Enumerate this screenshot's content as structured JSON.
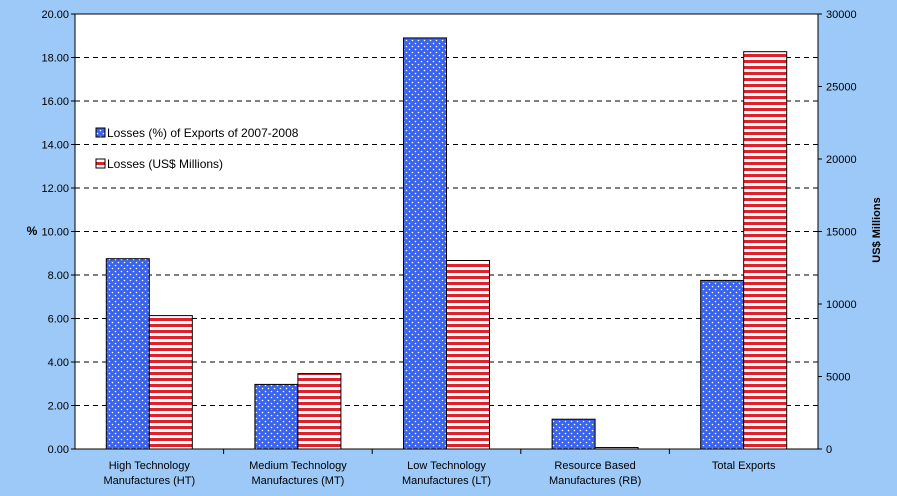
{
  "chart_data": {
    "type": "bar",
    "title": "",
    "categories": [
      [
        "High Technology",
        "Manufactures (HT)"
      ],
      [
        "Medium Technology",
        "Manufactures (MT)"
      ],
      [
        "Low Technology",
        "Manufactures (LT)"
      ],
      [
        "Resource Based",
        "Manufactures (RB)"
      ],
      [
        "Total Exports"
      ]
    ],
    "series": [
      {
        "name": "Losses (%) of Exports of 2007-2008",
        "axis": "left",
        "pattern": "dots",
        "color": "#3a63ee",
        "values": [
          8.75,
          2.97,
          18.9,
          1.37,
          7.75
        ]
      },
      {
        "name": "Losses (US$ Millions)",
        "axis": "right",
        "pattern": "stripes",
        "color": "#e0202a",
        "values": [
          9200,
          5200,
          13000,
          100,
          27400
        ]
      }
    ],
    "y_left": {
      "label": "%",
      "ylim": [
        0,
        20
      ],
      "ticks": [
        "0.00",
        "2.00",
        "4.00",
        "6.00",
        "8.00",
        "10.00",
        "12.00",
        "14.00",
        "16.00",
        "18.00",
        "20.00"
      ]
    },
    "y_right": {
      "label": "US$ Millions",
      "ylim": [
        0,
        30000
      ],
      "ticks": [
        "0",
        "5000",
        "10000",
        "15000",
        "20000",
        "25000",
        "30000"
      ]
    },
    "grid": true,
    "legend_position": "left",
    "background": "#9cc9f8",
    "plot_background": "#ffffff"
  }
}
